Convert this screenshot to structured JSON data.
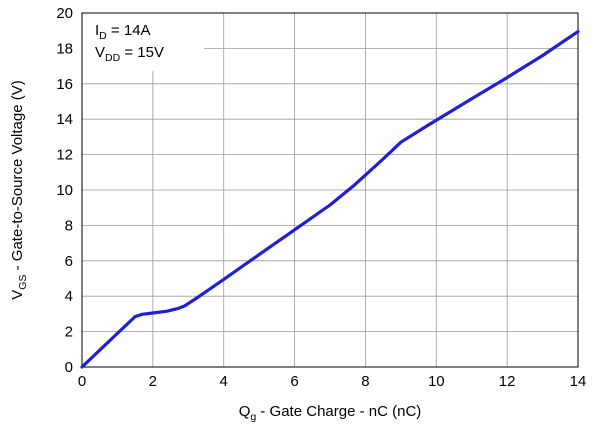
{
  "chart_data": {
    "type": "line",
    "xlabel": {
      "main": "Q",
      "sub": "g",
      "rest": " - Gate Charge - nC (nC)"
    },
    "ylabel": {
      "main": "V",
      "sub": "GS",
      "rest": " - Gate-to-Source Voltage (V)"
    },
    "xlim": [
      0,
      14
    ],
    "ylim": [
      0,
      20
    ],
    "xticks": [
      0,
      2,
      4,
      6,
      8,
      10,
      12,
      14
    ],
    "yticks": [
      0,
      2,
      4,
      6,
      8,
      10,
      12,
      14,
      16,
      18,
      20
    ],
    "grid": true,
    "annotations": [
      {
        "main": "I",
        "sub": "D",
        "rest": " = 14A"
      },
      {
        "main": "V",
        "sub": "DD",
        "rest": " = 15V"
      }
    ],
    "series": [
      {
        "color": "#1f1fd8",
        "x": [
          0,
          0.5,
          1.0,
          1.5,
          1.7,
          2.0,
          2.4,
          2.7,
          2.9,
          3.2,
          4.0,
          5.0,
          6.0,
          7.0,
          7.7,
          8.5,
          9.0,
          9.8,
          10.5,
          11.0,
          12.0,
          13.0,
          14.0
        ],
        "y": [
          0,
          0.95,
          1.9,
          2.85,
          2.98,
          3.05,
          3.15,
          3.3,
          3.45,
          3.85,
          4.95,
          6.35,
          7.75,
          9.15,
          10.3,
          11.75,
          12.7,
          13.7,
          14.55,
          15.15,
          16.35,
          17.6,
          18.95
        ]
      }
    ]
  }
}
